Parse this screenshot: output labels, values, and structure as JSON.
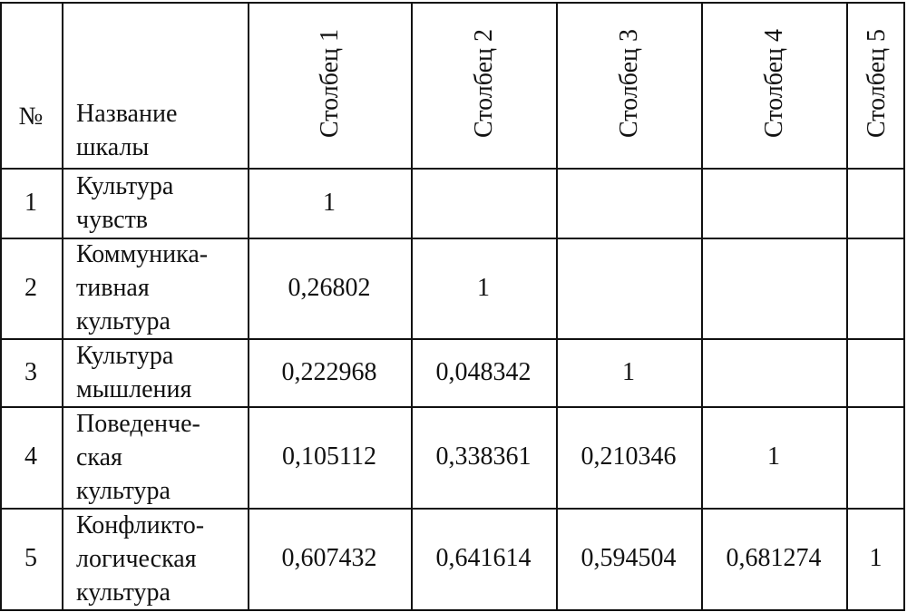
{
  "table": {
    "header": {
      "number": "№",
      "name": [
        "Название",
        "шкалы"
      ],
      "columns": [
        "Столбец 1",
        "Столбец 2",
        "Столбец 3",
        "Столбец 4",
        "Столбец 5"
      ]
    },
    "rows": [
      {
        "number": "1",
        "name": [
          "Культура",
          "чувств"
        ],
        "values": [
          "1"
        ]
      },
      {
        "number": "2",
        "name": [
          "Коммуника-",
          "тивная",
          "культура"
        ],
        "values": [
          "0,26802",
          "1"
        ]
      },
      {
        "number": "3",
        "name": [
          "Культура",
          "мышления"
        ],
        "values": [
          "0,222968",
          "0,048342",
          "1"
        ]
      },
      {
        "number": "4",
        "name": [
          "Поведенче-",
          "ская",
          "культура"
        ],
        "values": [
          "0,105112",
          "0,338361",
          "0,210346",
          "1"
        ]
      },
      {
        "number": "5",
        "name": [
          "Конфликто-",
          "логическая",
          "культура"
        ],
        "values": [
          "0,607432",
          "0,641614",
          "0,594504",
          "0,681274",
          "1"
        ]
      }
    ]
  }
}
